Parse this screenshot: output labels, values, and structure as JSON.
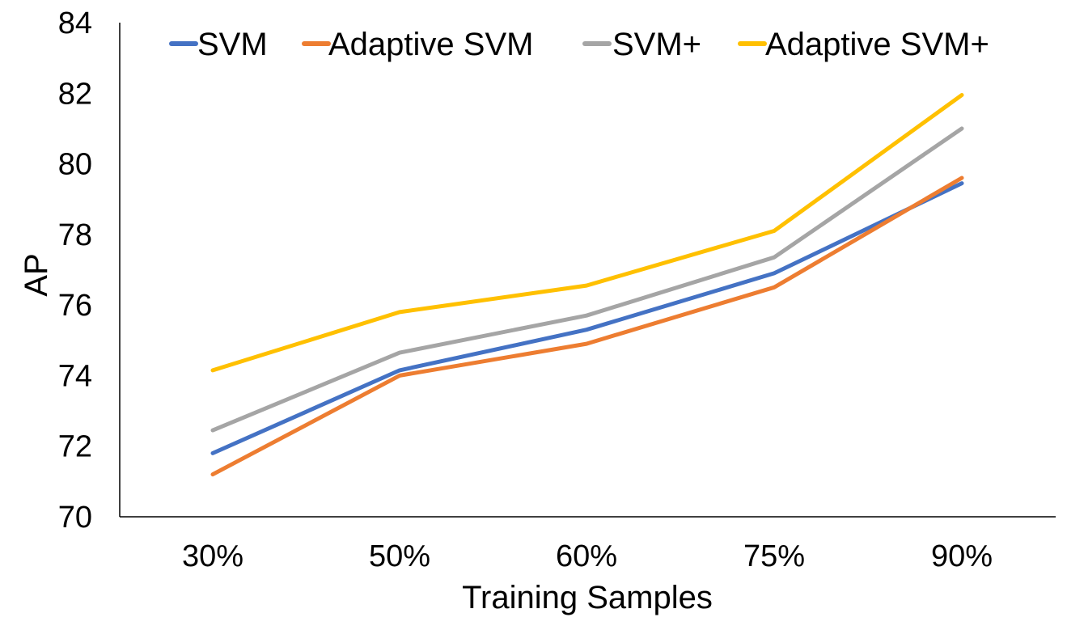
{
  "chart_data": {
    "type": "line",
    "title": "",
    "xlabel": "Training Samples",
    "ylabel": "AP",
    "categories": [
      "30%",
      "50%",
      "60%",
      "75%",
      "90%"
    ],
    "ylim": [
      70,
      84
    ],
    "yticks": [
      "70",
      "72",
      "74",
      "76",
      "78",
      "80",
      "82",
      "84"
    ],
    "grid": false,
    "legend_position": "top",
    "series": [
      {
        "name": "SVM",
        "color": "#4472C4",
        "values": [
          71.8,
          74.15,
          75.3,
          76.9,
          79.45
        ]
      },
      {
        "name": "Adaptive SVM",
        "color": "#ED7D31",
        "values": [
          71.2,
          74.0,
          74.9,
          76.5,
          79.6
        ]
      },
      {
        "name": "SVM+",
        "color": "#A5A5A5",
        "values": [
          72.45,
          74.65,
          75.7,
          77.35,
          81.0
        ]
      },
      {
        "name": "Adaptive SVM+",
        "color": "#FFC000",
        "values": [
          74.15,
          75.8,
          76.55,
          78.1,
          81.95
        ]
      }
    ]
  }
}
